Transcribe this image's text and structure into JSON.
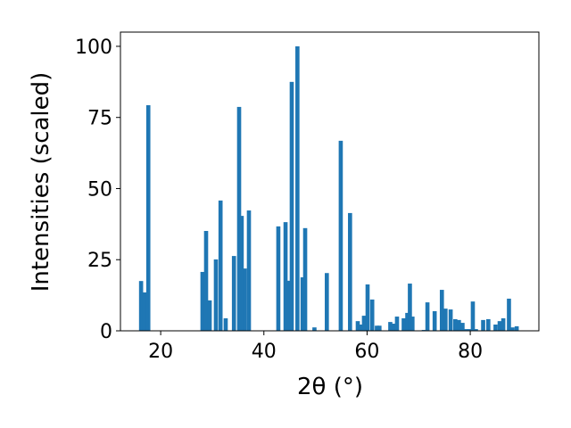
{
  "chart_data": {
    "type": "bar",
    "xlabel": "2θ (°)",
    "ylabel": "Intensities (scaled)",
    "color": "#1f77b4",
    "x": [
      16.2,
      16.9,
      17.6,
      28.1,
      28.8,
      29.5,
      30.7,
      31.6,
      32.6,
      34.2,
      35.2,
      35.7,
      36.3,
      37.1,
      42.8,
      44.2,
      44.9,
      45.4,
      46.5,
      47.5,
      48.0,
      49.8,
      52.2,
      54.9,
      56.7,
      58.2,
      58.7,
      59.4,
      60.1,
      61.0,
      61.9,
      62.4,
      64.5,
      65.2,
      65.8,
      67.1,
      67.8,
      68.3,
      68.8,
      71.0,
      71.7,
      73.1,
      74.5,
      75.2,
      76.2,
      77.1,
      77.8,
      78.5,
      79.2,
      79.9,
      80.5,
      81.1,
      82.5,
      83.5,
      84.9,
      85.7,
      86.4,
      87.5,
      88.2,
      89.0
    ],
    "values": [
      17.5,
      13.5,
      79.3,
      20.7,
      35.1,
      10.7,
      25.1,
      45.8,
      4.4,
      26.3,
      78.7,
      40.4,
      21.9,
      42.3,
      36.7,
      38.2,
      17.6,
      87.5,
      100,
      18.8,
      36.1,
      1.2,
      20.3,
      66.8,
      41.4,
      3.4,
      2.2,
      5.3,
      16.3,
      11,
      1.8,
      1.8,
      3.1,
      2.5,
      5,
      4.4,
      6.3,
      16.6,
      5,
      0.3,
      10,
      6.9,
      14.4,
      7.8,
      7.5,
      4.1,
      3.8,
      2.8,
      0.6,
      0.6,
      10.3,
      0.6,
      3.8,
      4.1,
      2.2,
      3.4,
      4.4,
      11.3,
      1.2,
      1.6
    ],
    "xlim": [
      12.2,
      93.3
    ],
    "ylim": [
      0,
      105
    ],
    "xticks": [
      20,
      40,
      60,
      80
    ],
    "yticks": [
      0,
      25,
      50,
      75,
      100
    ]
  }
}
